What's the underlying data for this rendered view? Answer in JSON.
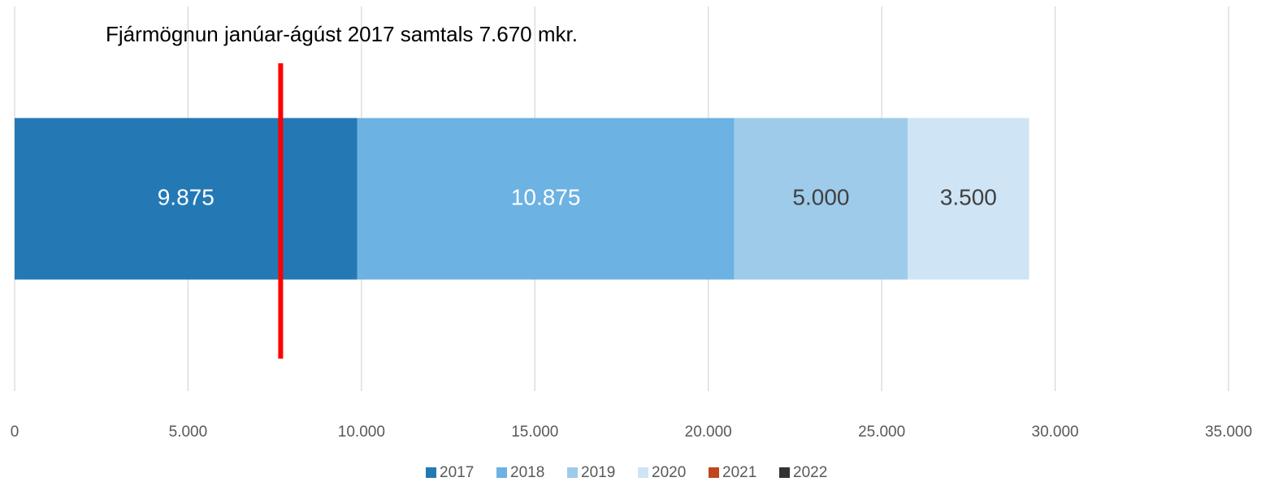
{
  "chart_data": {
    "type": "bar",
    "orientation": "horizontal",
    "stacked": true,
    "categories": [
      null
    ],
    "series": [
      {
        "name": "2017",
        "color": "#2479b5",
        "label_color": "#ffffff",
        "values": [
          9875
        ],
        "value_labels": [
          "9.875"
        ]
      },
      {
        "name": "2018",
        "color": "#6cb2e2",
        "label_color": "#ffffff",
        "values": [
          10875
        ],
        "value_labels": [
          "10.875"
        ]
      },
      {
        "name": "2019",
        "color": "#9ecbea",
        "label_color": "#404040",
        "values": [
          5000
        ],
        "value_labels": [
          "5.000"
        ]
      },
      {
        "name": "2020",
        "color": "#cfe4f4",
        "label_color": "#404040",
        "values": [
          3500
        ],
        "value_labels": [
          "3.500"
        ]
      },
      {
        "name": "2021",
        "color": "#c0461e",
        "label_color": "#404040",
        "values": [
          null
        ]
      },
      {
        "name": "2022",
        "color": "#333333",
        "label_color": "#404040",
        "values": [
          null
        ]
      }
    ],
    "xlim": [
      0,
      35000
    ],
    "xticks": [
      0,
      {
        "value": 5000,
        "label": "5.000"
      },
      {
        "value": 10000,
        "label": "10.000"
      },
      {
        "value": 15000,
        "label": "15.000"
      },
      {
        "value": 20000,
        "label": "20.000"
      },
      {
        "value": 25000,
        "label": "25.000"
      },
      {
        "value": 30000,
        "label": "30.000"
      },
      {
        "value": 35000,
        "label": "35.000"
      }
    ],
    "grid": true,
    "legend": "bottom",
    "annotation": {
      "text": "Fjármögnun janúar-ágúst 2017 samtals 7.670 mkr.",
      "value": 7670,
      "color": "#ff0000"
    }
  }
}
